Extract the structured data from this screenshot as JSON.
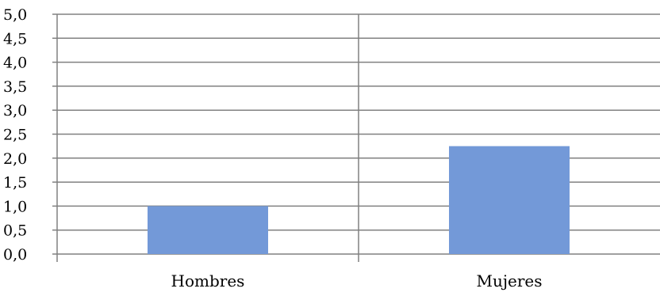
{
  "chart_data": {
    "type": "bar",
    "categories": [
      "Hombres",
      "Mujeres"
    ],
    "values": [
      1.0,
      2.25
    ],
    "ylim": [
      0,
      5
    ],
    "yticks": [
      "0,0",
      "0,5",
      "1,0",
      "1,5",
      "2,0",
      "2,5",
      "3,0",
      "3,5",
      "4,0",
      "4,5",
      "5,0"
    ],
    "ytick_values": [
      0,
      0.5,
      1,
      1.5,
      2,
      2.5,
      3,
      3.5,
      4,
      4.5,
      5
    ],
    "grid": true,
    "legend": "none",
    "bar_color": "#7399d8",
    "title": "",
    "xlabel": "",
    "ylabel": ""
  }
}
